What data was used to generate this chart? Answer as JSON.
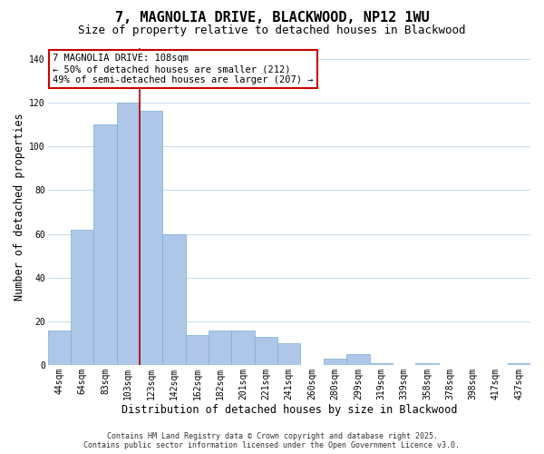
{
  "title": "7, MAGNOLIA DRIVE, BLACKWOOD, NP12 1WU",
  "subtitle": "Size of property relative to detached houses in Blackwood",
  "xlabel": "Distribution of detached houses by size in Blackwood",
  "ylabel": "Number of detached properties",
  "categories": [
    "44sqm",
    "64sqm",
    "83sqm",
    "103sqm",
    "123sqm",
    "142sqm",
    "162sqm",
    "182sqm",
    "201sqm",
    "221sqm",
    "241sqm",
    "260sqm",
    "280sqm",
    "299sqm",
    "319sqm",
    "339sqm",
    "358sqm",
    "378sqm",
    "398sqm",
    "417sqm",
    "437sqm"
  ],
  "values": [
    16,
    62,
    110,
    120,
    116,
    60,
    14,
    16,
    16,
    13,
    10,
    0,
    3,
    5,
    1,
    0,
    1,
    0,
    0,
    0,
    1
  ],
  "bar_color": "#aec6e8",
  "bar_edge_color": "#7aafd4",
  "highlight_bar_index": 3,
  "vline_color": "#aa0000",
  "vline_x_offset": 3.5,
  "ylim": [
    0,
    145
  ],
  "yticks": [
    0,
    20,
    40,
    60,
    80,
    100,
    120,
    140
  ],
  "annotation_title": "7 MAGNOLIA DRIVE: 108sqm",
  "annotation_line1": "← 50% of detached houses are smaller (212)",
  "annotation_line2": "49% of semi-detached houses are larger (207) →",
  "annotation_box_color": "#ffffff",
  "annotation_box_edge": "#cc0000",
  "footer1": "Contains HM Land Registry data © Crown copyright and database right 2025.",
  "footer2": "Contains public sector information licensed under the Open Government Licence v3.0.",
  "background_color": "#ffffff",
  "grid_color": "#ccddee",
  "title_fontsize": 11,
  "subtitle_fontsize": 9,
  "axis_label_fontsize": 8.5,
  "tick_fontsize": 7,
  "annotation_fontsize": 7.5,
  "footer_fontsize": 6
}
